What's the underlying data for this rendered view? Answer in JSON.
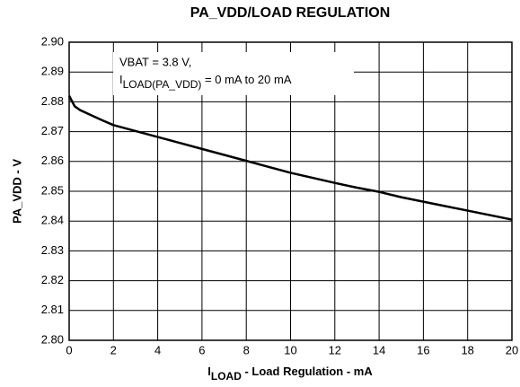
{
  "chart_data": {
    "type": "line",
    "title": "PA_VDD/LOAD REGULATION",
    "ylabel": "PA_VDD - V",
    "xlabel": {
      "main": "I",
      "sub": "LOAD",
      "rest": " - Load Regulation - mA"
    },
    "annotation": {
      "line1": "VBAT = 3.8 V,",
      "main": "I",
      "sub": "LOAD(PA_VDD)",
      "rest": " = 0 mA to 20 mA"
    },
    "x": [
      0,
      0.25,
      0.5,
      1,
      1.5,
      2,
      3,
      4,
      5,
      6,
      7,
      8,
      9,
      10,
      11,
      12,
      13,
      14,
      15,
      16,
      17,
      18,
      19,
      20
    ],
    "series": [
      {
        "name": "PA_VDD",
        "color": "#000000",
        "values": [
          2.882,
          2.8785,
          2.8772,
          2.8755,
          2.8738,
          2.8722,
          2.8702,
          2.8682,
          2.8662,
          2.8642,
          2.8622,
          2.8602,
          2.8582,
          2.8562,
          2.8545,
          2.8528,
          2.8512,
          2.8498,
          2.848,
          2.8465,
          2.845,
          2.8435,
          2.842,
          2.8405
        ]
      }
    ],
    "xlim": [
      0,
      20
    ],
    "xticks": [
      0,
      2,
      4,
      6,
      8,
      10,
      12,
      14,
      16,
      18,
      20
    ],
    "ylim": [
      2.8,
      2.9
    ],
    "yticks": [
      {
        "value": 2.8,
        "label": "2.80"
      },
      2.81,
      2.82,
      2.83,
      2.84,
      2.85,
      2.86,
      2.87,
      2.88,
      2.89,
      {
        "value": 2.9,
        "label": "2.90"
      }
    ],
    "grid": true
  }
}
